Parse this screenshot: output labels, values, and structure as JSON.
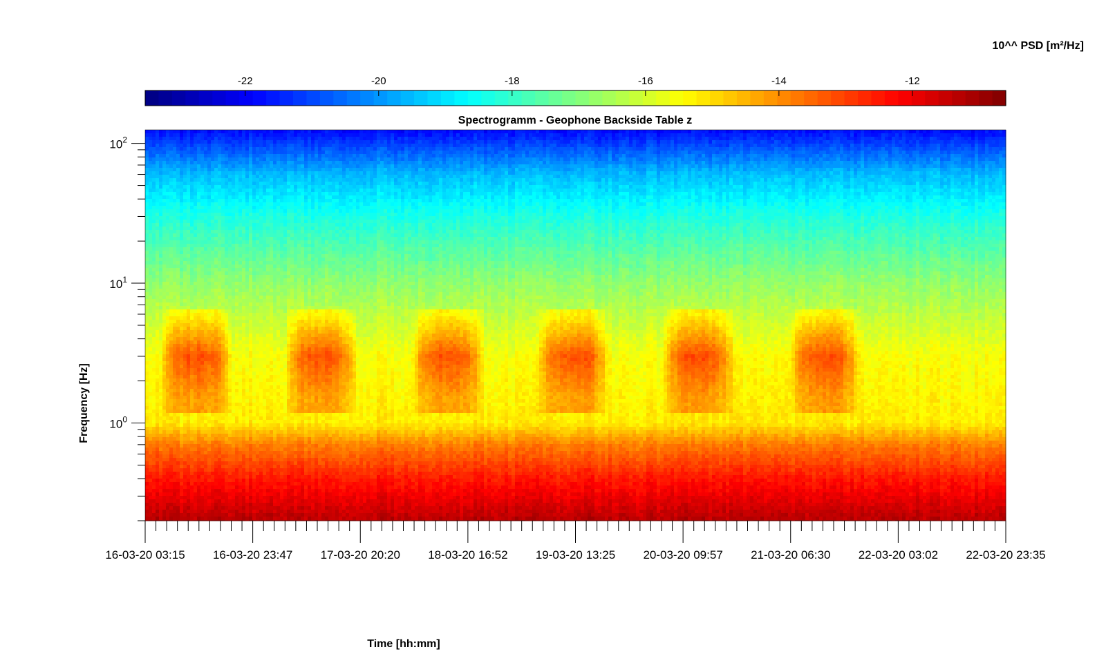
{
  "chart_data": {
    "type": "heatmap",
    "title": "Spectrogramm - Geophone Backside Table z",
    "xlabel": "Time [hh:mm]",
    "ylabel": "Frequency [Hz]",
    "colorbar_label": "10^^ PSD [m²/Hz]",
    "colormap": "jet",
    "colorbar_range": [
      -23.5,
      -10.6
    ],
    "colorbar_ticks": [
      {
        "value": -22,
        "label": "-22"
      },
      {
        "value": -20,
        "label": "-20"
      },
      {
        "value": -18,
        "label": "-18"
      },
      {
        "value": -16,
        "label": "-16"
      },
      {
        "value": -14,
        "label": "-14"
      },
      {
        "value": -12,
        "label": "-12"
      }
    ],
    "y_scale": "log",
    "ylim": [
      0.2,
      125
    ],
    "y_ticks": [
      {
        "value": 1,
        "base": "10",
        "exp": "0"
      },
      {
        "value": 10,
        "base": "10",
        "exp": "1"
      },
      {
        "value": 100,
        "base": "10",
        "exp": "2"
      }
    ],
    "xlim": [
      "16-03-20 03:15",
      "22-03-20 23:35"
    ],
    "x_ticks": [
      "16-03-20 03:15",
      "16-03-20 23:47",
      "17-03-20 20:20",
      "18-03-20 16:52",
      "19-03-20 13:25",
      "20-03-20 09:57",
      "21-03-20 06:30",
      "22-03-20 03:02",
      "22-03-20 23:35"
    ],
    "x_minor_ticks_per_major": 10,
    "grid": false,
    "daytime_activity_bands": [
      {
        "start": "16-03-20 07:00",
        "end": "16-03-20 19:00"
      },
      {
        "start": "17-03-20 07:00",
        "end": "17-03-20 19:00"
      },
      {
        "start": "18-03-20 07:00",
        "end": "18-03-20 19:00"
      },
      {
        "start": "19-03-20 07:00",
        "end": "19-03-20 19:00"
      },
      {
        "start": "20-03-20 07:00",
        "end": "20-03-20 19:00"
      },
      {
        "start": "21-03-20 07:00",
        "end": "21-03-20 19:00"
      }
    ],
    "psd_profile_quiet": [
      {
        "freq": 0.2,
        "log_psd": -11.3
      },
      {
        "freq": 0.4,
        "log_psd": -12.5
      },
      {
        "freq": 0.7,
        "log_psd": -13.8
      },
      {
        "freq": 1.0,
        "log_psd": -15.2
      },
      {
        "freq": 3.0,
        "log_psd": -15.5
      },
      {
        "freq": 10,
        "log_psd": -16.8
      },
      {
        "freq": 30,
        "log_psd": -18.3
      },
      {
        "freq": 60,
        "log_psd": -19.5
      },
      {
        "freq": 125,
        "log_psd": -21.8
      }
    ],
    "psd_profile_daytime": [
      {
        "freq": 1.5,
        "log_psd": -14.2
      },
      {
        "freq": 3.0,
        "log_psd": -13.2
      },
      {
        "freq": 6.0,
        "log_psd": -15.3
      }
    ]
  }
}
